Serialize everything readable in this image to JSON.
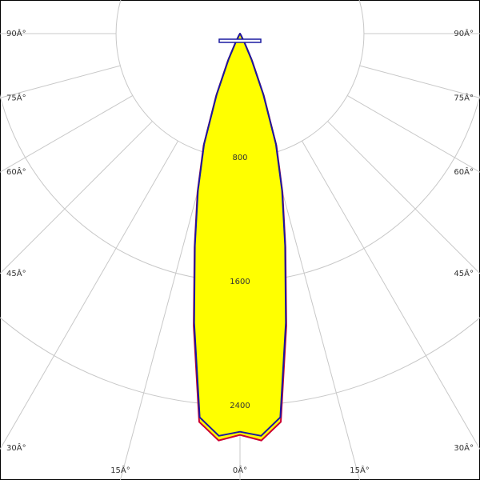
{
  "chart_data": {
    "type": "polar-intensity",
    "x": [
      -30,
      -27,
      -24,
      -21,
      -18,
      -15,
      -12,
      -9,
      -6,
      -3,
      0,
      3,
      6,
      9,
      12,
      15,
      18,
      21,
      24,
      27,
      30
    ],
    "series": [
      {
        "color": "#cc0033",
        "values": [
          10,
          60,
          190,
          430,
          760,
          1060,
          1410,
          1910,
          2520,
          2630,
          2590,
          2630,
          2520,
          1910,
          1410,
          1060,
          760,
          430,
          190,
          60,
          10
        ]
      },
      {
        "color": "#1a1aa0",
        "values": [
          10,
          55,
          180,
          420,
          750,
          1050,
          1400,
          1890,
          2490,
          2600,
          2570,
          2600,
          2490,
          1890,
          1400,
          1050,
          750,
          420,
          180,
          55,
          10
        ]
      }
    ],
    "fill": "#ffff00",
    "rlim": [
      0,
      3000
    ],
    "rticks": [
      800,
      1600,
      2400
    ],
    "angle_ticks": [
      {
        "value": -90,
        "label": "90Â°"
      },
      {
        "value": -75,
        "label": "75Â°"
      },
      {
        "value": -60,
        "label": "60Â°"
      },
      {
        "value": -45,
        "label": "45Â°"
      },
      {
        "value": -30,
        "label": "30Â°"
      },
      {
        "value": -15,
        "label": "15Â°"
      },
      {
        "value": 0,
        "label": "0Â°"
      },
      {
        "value": 15,
        "label": "15Â°"
      },
      {
        "value": 30,
        "label": "30Â°"
      },
      {
        "value": 45,
        "label": "45Â°"
      },
      {
        "value": 60,
        "label": "60Â°"
      },
      {
        "value": 75,
        "label": "75Â°"
      },
      {
        "value": 90,
        "label": "90Â°"
      }
    ]
  }
}
